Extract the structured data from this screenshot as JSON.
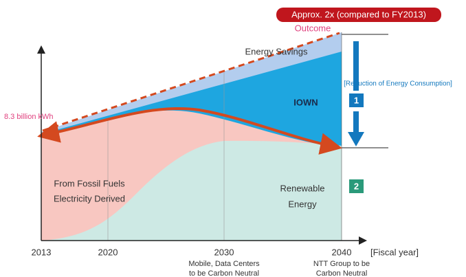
{
  "header": {
    "badge": "Approx. 2x (compared to FY2013)",
    "outcome": "Outcome"
  },
  "regions": {
    "savings": "Energy Savings",
    "iown": "IOWN",
    "fossil": [
      "From Fossil Fuels",
      "Electricity Derived"
    ],
    "renewable": [
      "Renewable",
      "Energy"
    ]
  },
  "start_label": "8.3 billion kWh",
  "reduction": {
    "label": "[Reduction of Energy Consumption]",
    "step1": "1",
    "step2": "2"
  },
  "x_axis": {
    "ticks": [
      "2013",
      "2020",
      "2030",
      "2040"
    ],
    "unit": "[Fiscal year]",
    "notes": {
      "2030": [
        "Mobile, Data Centers",
        "to be Carbon Neutral"
      ],
      "2040": [
        "NTT Group to be",
        "Carbon Neutral"
      ]
    }
  }
}
